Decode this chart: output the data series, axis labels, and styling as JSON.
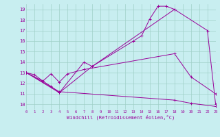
{
  "xlabel": "Windchill (Refroidissement éolien,°C)",
  "bg_color": "#c8eef0",
  "grid_color": "#a0d0c8",
  "line_color": "#990099",
  "xlim": [
    0,
    23
  ],
  "ylim": [
    9.5,
    19.5
  ],
  "yticks": [
    10,
    11,
    12,
    13,
    14,
    15,
    16,
    17,
    18,
    19
  ],
  "xticks": [
    0,
    1,
    2,
    3,
    4,
    5,
    6,
    7,
    8,
    9,
    10,
    11,
    12,
    13,
    14,
    15,
    16,
    17,
    18,
    19,
    20,
    21,
    22,
    23
  ],
  "series": [
    {
      "x": [
        0,
        1,
        2,
        3,
        4,
        7,
        8,
        13,
        14,
        15,
        16,
        17,
        18
      ],
      "y": [
        13,
        12.8,
        12.2,
        11.7,
        11.1,
        14.0,
        13.6,
        16.0,
        16.5,
        18.1,
        19.3,
        19.3,
        19.0
      ]
    },
    {
      "x": [
        0,
        4,
        8,
        18,
        22,
        23
      ],
      "y": [
        13,
        11.1,
        13.6,
        19.0,
        17.0,
        10.0
      ]
    },
    {
      "x": [
        0,
        2,
        3,
        4,
        5,
        7,
        18,
        20,
        23
      ],
      "y": [
        13,
        12.2,
        12.9,
        12.1,
        12.9,
        13.3,
        14.8,
        12.6,
        11.0
      ]
    },
    {
      "x": [
        0,
        4,
        18,
        20,
        23
      ],
      "y": [
        13,
        11.2,
        10.4,
        10.1,
        9.8
      ]
    }
  ]
}
